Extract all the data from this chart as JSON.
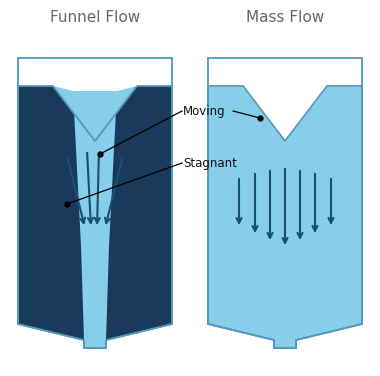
{
  "title_left": "Funnel Flow",
  "title_right": "Mass Flow",
  "label_moving": "Moving",
  "label_stagnant": "Stagnant",
  "light_blue": "#87CEEB",
  "light_blue2": "#6BB8D4",
  "dark_blue": "#1a3a5c",
  "arrow_color": "#1a4f72",
  "border_color": "#5599bb",
  "bg_color": "#ffffff",
  "title_color": "#666666",
  "annotation_color": "#111111",
  "figsize": [
    3.8,
    3.76
  ],
  "dpi": 100
}
